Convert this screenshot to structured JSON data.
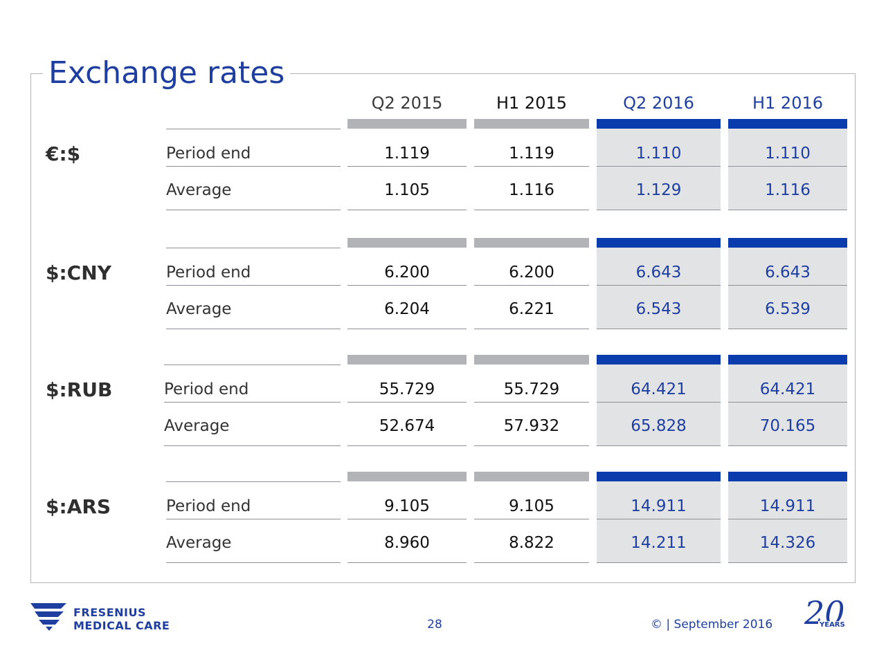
{
  "title": "Exchange rates",
  "columns": [
    "Q2 2015",
    "H1 2015",
    "Q2 2016",
    "H1 2016"
  ],
  "groups": [
    {
      "currency": "€:$",
      "rows": [
        {
          "label": "Period end",
          "values": [
            "1.119",
            "1.119",
            "1.110",
            "1.110"
          ]
        },
        {
          "label": "Average",
          "values": [
            "1.105",
            "1.116",
            "1.129",
            "1.116"
          ]
        }
      ]
    },
    {
      "currency": "$:CNY",
      "rows": [
        {
          "label": "Period end",
          "values": [
            "6.200",
            "6.200",
            "6.643",
            "6.643"
          ]
        },
        {
          "label": "Average",
          "values": [
            "6.204",
            "6.221",
            "6.543",
            "6.539"
          ]
        }
      ]
    },
    {
      "currency": "$:RUB",
      "rows": [
        {
          "label": "Period end",
          "values": [
            "55.729",
            "55.729",
            "64.421",
            "64.421"
          ]
        },
        {
          "label": "Average",
          "values": [
            "52.674",
            "57.932",
            "65.828",
            "70.165"
          ]
        }
      ]
    },
    {
      "currency": "$:ARS",
      "rows": [
        {
          "label": "Period end",
          "values": [
            "9.105",
            "9.105",
            "14.911",
            "14.911"
          ]
        },
        {
          "label": "Average",
          "values": [
            "8.960",
            "8.822",
            "14.211",
            "14.326"
          ]
        }
      ]
    }
  ],
  "footer": {
    "page_number": "28",
    "copyright": "© | September 2016",
    "logo_line1": "FRESENIUS",
    "logo_line2": "MEDICAL CARE",
    "anniversary_number": "20",
    "anniversary_word": "YEARS"
  },
  "colors": {
    "brand_blue": "#1f3fa0",
    "bar_blue": "#0a3cad",
    "bar_gray": "#b1b3b6",
    "cell_shade": "#e2e3e5"
  }
}
